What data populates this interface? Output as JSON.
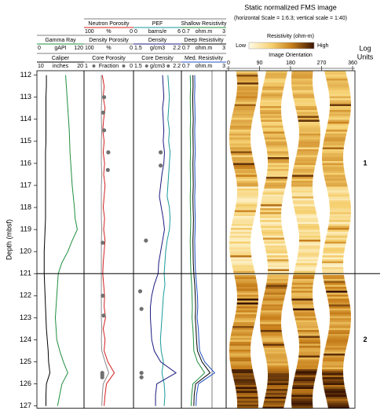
{
  "chart_data": {
    "type": "well-log",
    "title": "Static normalized FMS image",
    "subtitle": "(horizontal Scale = 1:6.3; vertical scale = 1:40)",
    "y_label": "Depth (mbsf)",
    "ylim": [
      111.8,
      127.1
    ],
    "yticks": [
      112,
      113,
      114,
      115,
      116,
      117,
      118,
      119,
      120,
      121,
      122,
      123,
      124,
      125,
      126,
      127
    ],
    "depth": [
      112,
      112.5,
      113,
      113.5,
      114,
      114.5,
      115,
      115.5,
      116,
      116.5,
      117,
      117.5,
      118,
      118.5,
      119,
      119.5,
      120,
      120.5,
      121,
      121.5,
      122,
      122.5,
      123,
      123.5,
      124,
      124.5,
      125,
      125.5,
      126,
      126.5,
      127
    ],
    "tracks": [
      {
        "curves": [
          {
            "name": "Gamma Ray",
            "unit": "gAPI",
            "xlim": [
              0,
              120
            ],
            "color": "#1f8f3f",
            "values": [
              74,
              76,
              78,
              80,
              82,
              84,
              85,
              86,
              88,
              90,
              92,
              95,
              98,
              100,
              106,
              92,
              80,
              64,
              54,
              52,
              50,
              48,
              46,
              48,
              50,
              58,
              68,
              80,
              64,
              58,
              52
            ]
          },
          {
            "name": "Caliper",
            "unit": "inches",
            "xlim": [
              10,
              20
            ],
            "color": "#000000",
            "values": [
              11.8,
              11.8,
              11.7,
              11.7,
              11.7,
              11.7,
              11.7,
              11.6,
              11.6,
              11.6,
              11.6,
              11.6,
              11.6,
              11.6,
              11.5,
              11.4,
              11.3,
              11.3,
              11.3,
              11.4,
              11.5,
              11.6,
              11.7,
              11.8,
              12.0,
              12.2,
              12.3,
              12.6,
              11.8,
              11.7,
              11.7
            ]
          }
        ]
      },
      {
        "curves": [
          {
            "name": "Neutron Porosity",
            "unit": "%",
            "xlim": [
              100,
              0
            ],
            "color": "#d42020",
            "values": [
              64,
              60,
              62,
              58,
              61,
              63,
              60,
              62,
              59,
              61,
              58,
              60,
              62,
              59,
              61,
              58,
              60,
              62,
              63,
              61,
              59,
              60,
              57,
              62,
              58,
              60,
              52,
              38,
              55,
              58,
              60
            ]
          },
          {
            "name": "Density Porosity",
            "unit": "%",
            "xlim": [
              100,
              0
            ],
            "color": "#8a8a8a",
            "values": [
              66,
              66,
              65,
              66,
              66,
              65,
              66,
              66,
              66,
              65,
              66,
              66,
              66,
              66,
              65,
              66,
              66,
              66,
              66,
              66,
              66,
              66,
              66,
              65,
              66,
              65,
              58,
              50,
              62,
              64,
              65
            ]
          },
          {
            "name": "Core Porosity",
            "unit": "Fraction",
            "xlim": [
              1,
              0
            ],
            "color": "#707070",
            "style": "points",
            "depth": [
              113,
              113.7,
              114.5,
              115.5,
              116.3,
              119.6,
              122,
              122.9,
              125.5,
              125.6,
              125.7
            ],
            "values": [
              0.6,
              0.62,
              0.6,
              0.51,
              0.52,
              0.63,
              0.63,
              0.61,
              0.64,
              0.64,
              0.64
            ]
          }
        ]
      },
      {
        "curves": [
          {
            "name": "PEF",
            "unit": "barns/e",
            "xlim": [
              0,
              6
            ],
            "color": "#1a9a9a",
            "values": [
              4.4,
              4.5,
              4.6,
              4.5,
              4.4,
              4.6,
              4.5,
              4.7,
              4.6,
              4.5,
              4.4,
              4.3,
              4.6,
              4.7,
              4.6,
              4.3,
              4.1,
              4.0,
              3.9,
              4.0,
              3.8,
              3.7,
              3.6,
              3.5,
              3.4,
              3.5,
              3.8,
              3.6,
              3.9,
              4.0,
              3.9
            ]
          },
          {
            "name": "Density",
            "unit": "g/cm3",
            "xlim": [
              1.5,
              2.2
            ],
            "color": "#1a1a80",
            "values": [
              1.93,
              1.94,
              1.95,
              1.93,
              1.94,
              1.95,
              1.94,
              1.96,
              1.95,
              1.92,
              1.9,
              1.88,
              1.91,
              1.94,
              1.96,
              1.93,
              1.9,
              1.87,
              1.86,
              1.8,
              1.76,
              1.74,
              1.74,
              1.75,
              1.76,
              1.8,
              1.9,
              2.14,
              1.84,
              1.82,
              1.82
            ]
          },
          {
            "name": "Core Density",
            "unit": "g/cm3",
            "xlim": [
              1.5,
              2.2
            ],
            "color": "#707070",
            "style": "points",
            "depth": [
              115.5,
              116.1,
              119.5,
              121.8,
              122.6,
              125.5,
              125.7
            ],
            "values": [
              1.9,
              1.9,
              1.67,
              1.58,
              1.6,
              1.6,
              1.6
            ]
          }
        ]
      },
      {
        "curves": [
          {
            "name": "Shallow Resistivity",
            "unit": "ohm.m",
            "xlim": [
              0.7,
              3
            ],
            "color": "#1f8f3f",
            "values": [
              1.1,
              1.12,
              1.1,
              1.11,
              1.12,
              1.1,
              1.11,
              1.12,
              1.1,
              1.11,
              1.12,
              1.1,
              1.11,
              1.13,
              1.12,
              1.1,
              1.11,
              1.12,
              1.14,
              1.18,
              1.2,
              1.22,
              1.2,
              1.25,
              1.28,
              1.3,
              1.5,
              1.9,
              1.25,
              1.18,
              1.15
            ]
          },
          {
            "name": "Deep Resistivity",
            "unit": "ohm.m",
            "xlim": [
              0.7,
              3
            ],
            "color": "#000000",
            "values": [
              1.25,
              1.26,
              1.24,
              1.25,
              1.27,
              1.25,
              1.26,
              1.27,
              1.25,
              1.26,
              1.27,
              1.25,
              1.26,
              1.28,
              1.27,
              1.25,
              1.26,
              1.27,
              1.3,
              1.35,
              1.38,
              1.4,
              1.38,
              1.42,
              1.45,
              1.5,
              1.75,
              2.2,
              1.4,
              1.32,
              1.3
            ]
          },
          {
            "name": "Med. Resistivity",
            "unit": "ohm.m",
            "xlim": [
              0.7,
              3
            ],
            "color": "#2050c0",
            "values": [
              1.35,
              1.36,
              1.34,
              1.36,
              1.37,
              1.35,
              1.36,
              1.38,
              1.35,
              1.36,
              1.37,
              1.35,
              1.36,
              1.38,
              1.37,
              1.35,
              1.36,
              1.37,
              1.4,
              1.45,
              1.5,
              1.52,
              1.48,
              1.55,
              1.58,
              1.62,
              1.9,
              2.45,
              1.55,
              1.45,
              1.42
            ]
          }
        ]
      }
    ],
    "image": {
      "colorbar_label": "Resistivity (ohm-m)",
      "low_label": "Low",
      "high_label": "High",
      "orientation_label": "Image Orientation",
      "orientation_lim": [
        0,
        360
      ],
      "orientation_ticks": [
        0,
        90,
        180,
        270,
        360
      ]
    },
    "log_units": {
      "label_lines": [
        "Log",
        "Units"
      ],
      "boundaries": [
        121
      ],
      "units": [
        {
          "name": "1",
          "depth": 116
        },
        {
          "name": "2",
          "depth": 124
        }
      ]
    }
  }
}
